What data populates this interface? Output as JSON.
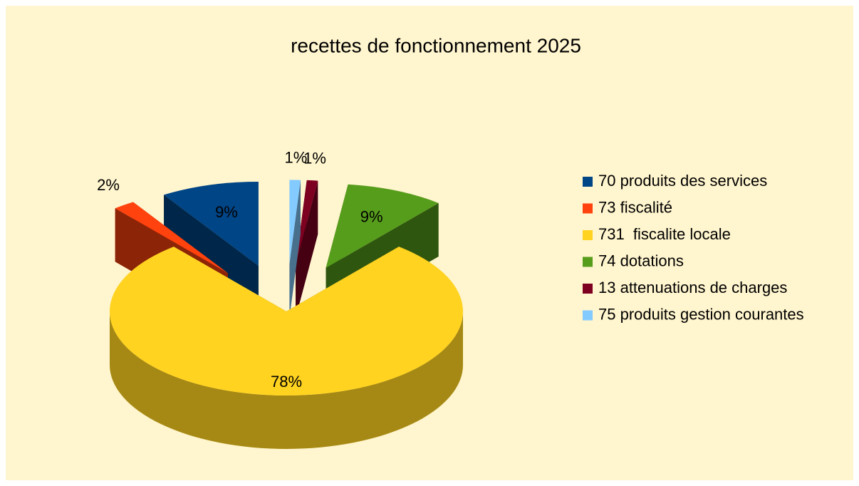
{
  "chart_data": {
    "type": "pie",
    "title": "recettes de fonctionnement 2025",
    "categories": [
      "70 produits des services",
      "73 fiscalité",
      "731  fiscalite locale",
      "74 dotations",
      "13 attenuations de charges",
      "75 produits gestion courantes"
    ],
    "values": [
      9,
      2,
      78,
      9,
      1,
      1
    ],
    "value_labels": [
      "9%",
      "2%",
      "78%",
      "9%",
      "1%",
      "1%"
    ],
    "colors": [
      "#004586",
      "#ff420e",
      "#ffd320",
      "#579d1c",
      "#7e0021",
      "#83caff"
    ],
    "legend": "right"
  }
}
